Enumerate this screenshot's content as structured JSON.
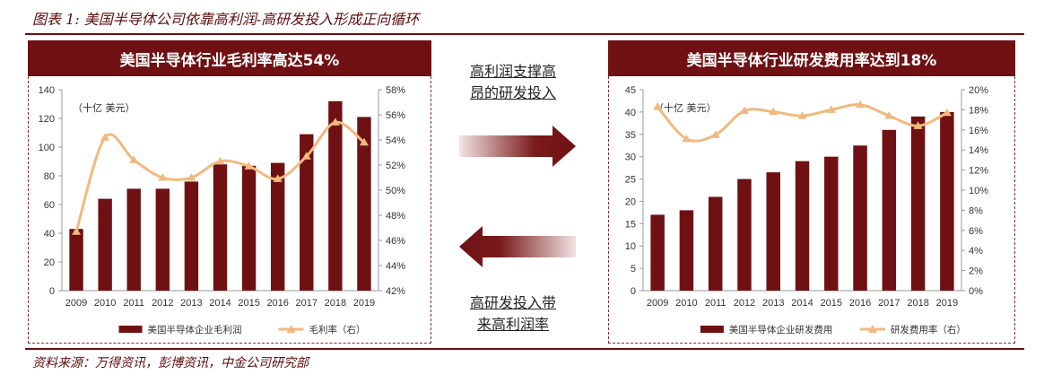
{
  "figure_title": "图表 1:  美国半导体公司依靠高利润-高研发投入形成正向循环",
  "source": "资料来源：万得资讯，彭博资讯，中金公司研究部",
  "middle": {
    "top_text": "高利润支撑高昂的研发投入",
    "top_line1": "高利润支撑高",
    "top_line2": "昂的研发投入",
    "bottom_line1": "高研发投入带",
    "bottom_line2": "来高利润率",
    "colors": {
      "arrow_dark": "#6f1113",
      "arrow_light": "#f2e4e4"
    }
  },
  "chart_data": [
    {
      "type": "bar+line",
      "banner": "美国半导体行业毛利率高达54%",
      "unit_note": "（十亿 美元）",
      "categories": [
        "2009",
        "2010",
        "2011",
        "2012",
        "2013",
        "2014",
        "2015",
        "2016",
        "2017",
        "2018",
        "2019"
      ],
      "series": [
        {
          "name": "美国半导体企业毛利润",
          "type": "bar",
          "axis": "left",
          "color": "#6f1113",
          "values": [
            43,
            64,
            71,
            71,
            76,
            88,
            87,
            89,
            109,
            132,
            121
          ]
        },
        {
          "name": "毛利率（右）",
          "type": "line",
          "axis": "right",
          "color": "#f0b97f",
          "values": [
            46.7,
            54.2,
            52.4,
            51.0,
            51.0,
            52.3,
            51.9,
            50.9,
            52.7,
            55.4,
            53.8
          ]
        }
      ],
      "ylim_left": [
        0,
        140
      ],
      "yticks_left": [
        "0",
        "20",
        "40",
        "60",
        "80",
        "100",
        "120",
        "140"
      ],
      "ylim_right": [
        42,
        58
      ],
      "yticks_right": [
        "42%",
        "44%",
        "46%",
        "48%",
        "50%",
        "52%",
        "54%",
        "56%",
        "58%"
      ]
    },
    {
      "type": "bar+line",
      "banner": "美国半导体行业研发费用率达到18%",
      "unit_note": "（十亿 美元）",
      "categories": [
        "2009",
        "2010",
        "2011",
        "2012",
        "2013",
        "2014",
        "2015",
        "2016",
        "2017",
        "2018",
        "2019"
      ],
      "series": [
        {
          "name": "美国半导体企业研发费用",
          "type": "bar",
          "axis": "left",
          "color": "#6f1113",
          "values": [
            17,
            18,
            21,
            25,
            26.5,
            29,
            30,
            32.5,
            36,
            39,
            40
          ]
        },
        {
          "name": "研发费用率（右）",
          "type": "line",
          "axis": "right",
          "color": "#f0b97f",
          "values": [
            18.3,
            15.1,
            15.5,
            17.9,
            17.8,
            17.4,
            18.0,
            18.5,
            17.4,
            16.4,
            17.7
          ]
        }
      ],
      "ylim_left": [
        0,
        45
      ],
      "yticks_left": [
        "0",
        "5",
        "10",
        "15",
        "20",
        "25",
        "30",
        "35",
        "40",
        "45"
      ],
      "ylim_right": [
        0,
        20
      ],
      "yticks_right": [
        "0%",
        "2%",
        "4%",
        "6%",
        "8%",
        "10%",
        "12%",
        "14%",
        "16%",
        "18%",
        "20%"
      ]
    }
  ]
}
